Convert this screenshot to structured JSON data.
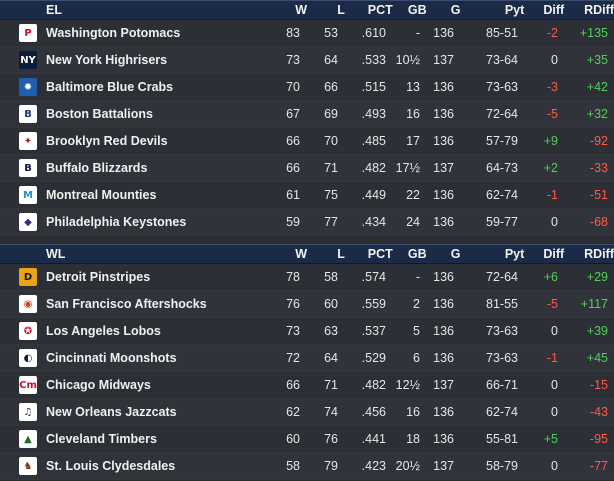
{
  "columns": {
    "w": "W",
    "l": "L",
    "pct": "PCT",
    "gb": "GB",
    "g": "G",
    "pyt": "Pyt",
    "diff": "Diff",
    "rdiff": "RDiff"
  },
  "divisions": [
    {
      "name": "EL",
      "teams": [
        {
          "name": "Washington Potomacs",
          "w": "83",
          "l": "53",
          "pct": ".610",
          "gb": "-",
          "g": "136",
          "pyt": "85-51",
          "diff": "-2",
          "rdiff": "+135",
          "logo": {
            "icon": "washington-logo-icon",
            "glyph": "P",
            "bg": "#ffffff",
            "fg": "#c8102e"
          }
        },
        {
          "name": "New York Highrisers",
          "w": "73",
          "l": "64",
          "pct": ".533",
          "gb": "10½",
          "g": "137",
          "pyt": "73-64",
          "diff": "0",
          "rdiff": "+35",
          "logo": {
            "icon": "new-york-logo-icon",
            "glyph": "NY",
            "bg": "#0b1d3a",
            "fg": "#ffffff"
          }
        },
        {
          "name": "Baltimore Blue Crabs",
          "w": "70",
          "l": "66",
          "pct": ".515",
          "gb": "13",
          "g": "136",
          "pyt": "73-63",
          "diff": "-3",
          "rdiff": "+42",
          "logo": {
            "icon": "baltimore-logo-icon",
            "glyph": "✹",
            "bg": "#1e5fae",
            "fg": "#ffffff"
          }
        },
        {
          "name": "Boston Battalions",
          "w": "67",
          "l": "69",
          "pct": ".493",
          "gb": "16",
          "g": "136",
          "pyt": "72-64",
          "diff": "-5",
          "rdiff": "+32",
          "logo": {
            "icon": "boston-logo-icon",
            "glyph": "B",
            "bg": "#ffffff",
            "fg": "#1b3a6b"
          }
        },
        {
          "name": "Brooklyn Red Devils",
          "w": "66",
          "l": "70",
          "pct": ".485",
          "gb": "17",
          "g": "136",
          "pyt": "57-79",
          "diff": "+9",
          "rdiff": "-92",
          "logo": {
            "icon": "brooklyn-logo-icon",
            "glyph": "✦",
            "bg": "#ffffff",
            "fg": "#c8102e"
          }
        },
        {
          "name": "Buffalo Blizzards",
          "w": "66",
          "l": "71",
          "pct": ".482",
          "gb": "17½",
          "g": "137",
          "pyt": "64-73",
          "diff": "+2",
          "rdiff": "-33",
          "logo": {
            "icon": "buffalo-logo-icon",
            "glyph": "B",
            "bg": "#ffffff",
            "fg": "#0b1d3a"
          }
        },
        {
          "name": "Montreal Mounties",
          "w": "61",
          "l": "75",
          "pct": ".449",
          "gb": "22",
          "g": "136",
          "pyt": "62-74",
          "diff": "-1",
          "rdiff": "-51",
          "logo": {
            "icon": "montreal-logo-icon",
            "glyph": "M",
            "bg": "#ffffff",
            "fg": "#2a8fc9"
          }
        },
        {
          "name": "Philadelphia Keystones",
          "w": "59",
          "l": "77",
          "pct": ".434",
          "gb": "24",
          "g": "136",
          "pyt": "59-77",
          "diff": "0",
          "rdiff": "-68",
          "logo": {
            "icon": "philadelphia-logo-icon",
            "glyph": "◆",
            "bg": "#ffffff",
            "fg": "#3b2a8a"
          }
        }
      ]
    },
    {
      "name": "WL",
      "teams": [
        {
          "name": "Detroit Pinstripes",
          "w": "78",
          "l": "58",
          "pct": ".574",
          "gb": "-",
          "g": "136",
          "pyt": "72-64",
          "diff": "+6",
          "rdiff": "+29",
          "logo": {
            "icon": "detroit-logo-icon",
            "glyph": "D",
            "bg": "#e8a317",
            "fg": "#1a1a1a"
          }
        },
        {
          "name": "San Francisco Aftershocks",
          "w": "76",
          "l": "60",
          "pct": ".559",
          "gb": "2",
          "g": "136",
          "pyt": "81-55",
          "diff": "-5",
          "rdiff": "+117",
          "logo": {
            "icon": "san-francisco-logo-icon",
            "glyph": "◉",
            "bg": "#ffffff",
            "fg": "#d4421b"
          }
        },
        {
          "name": "Los Angeles Lobos",
          "w": "73",
          "l": "63",
          "pct": ".537",
          "gb": "5",
          "g": "136",
          "pyt": "73-63",
          "diff": "0",
          "rdiff": "+39",
          "logo": {
            "icon": "los-angeles-logo-icon",
            "glyph": "✪",
            "bg": "#ffffff",
            "fg": "#c8102e"
          }
        },
        {
          "name": "Cincinnati Moonshots",
          "w": "72",
          "l": "64",
          "pct": ".529",
          "gb": "6",
          "g": "136",
          "pyt": "73-63",
          "diff": "-1",
          "rdiff": "+45",
          "logo": {
            "icon": "cincinnati-logo-icon",
            "glyph": "◐",
            "bg": "#ffffff",
            "fg": "#0b1d3a"
          }
        },
        {
          "name": "Chicago Midways",
          "w": "66",
          "l": "71",
          "pct": ".482",
          "gb": "12½",
          "g": "137",
          "pyt": "66-71",
          "diff": "0",
          "rdiff": "-15",
          "logo": {
            "icon": "chicago-logo-icon",
            "glyph": "Cm",
            "bg": "#ffffff",
            "fg": "#c8102e"
          }
        },
        {
          "name": "New Orleans Jazzcats",
          "w": "62",
          "l": "74",
          "pct": ".456",
          "gb": "16",
          "g": "136",
          "pyt": "62-74",
          "diff": "0",
          "rdiff": "-43",
          "logo": {
            "icon": "new-orleans-logo-icon",
            "glyph": "♫",
            "bg": "#ffffff",
            "fg": "#333333"
          }
        },
        {
          "name": "Cleveland Timbers",
          "w": "60",
          "l": "76",
          "pct": ".441",
          "gb": "18",
          "g": "136",
          "pyt": "55-81",
          "diff": "+5",
          "rdiff": "-95",
          "logo": {
            "icon": "cleveland-logo-icon",
            "glyph": "▲",
            "bg": "#ffffff",
            "fg": "#1f6b2e"
          }
        },
        {
          "name": "St. Louis Clydesdales",
          "w": "58",
          "l": "79",
          "pct": ".423",
          "gb": "20½",
          "g": "137",
          "pyt": "58-79",
          "diff": "0",
          "rdiff": "-77",
          "logo": {
            "icon": "st-louis-logo-icon",
            "glyph": "♞",
            "bg": "#ffffff",
            "fg": "#7a3b1a"
          }
        }
      ]
    }
  ]
}
